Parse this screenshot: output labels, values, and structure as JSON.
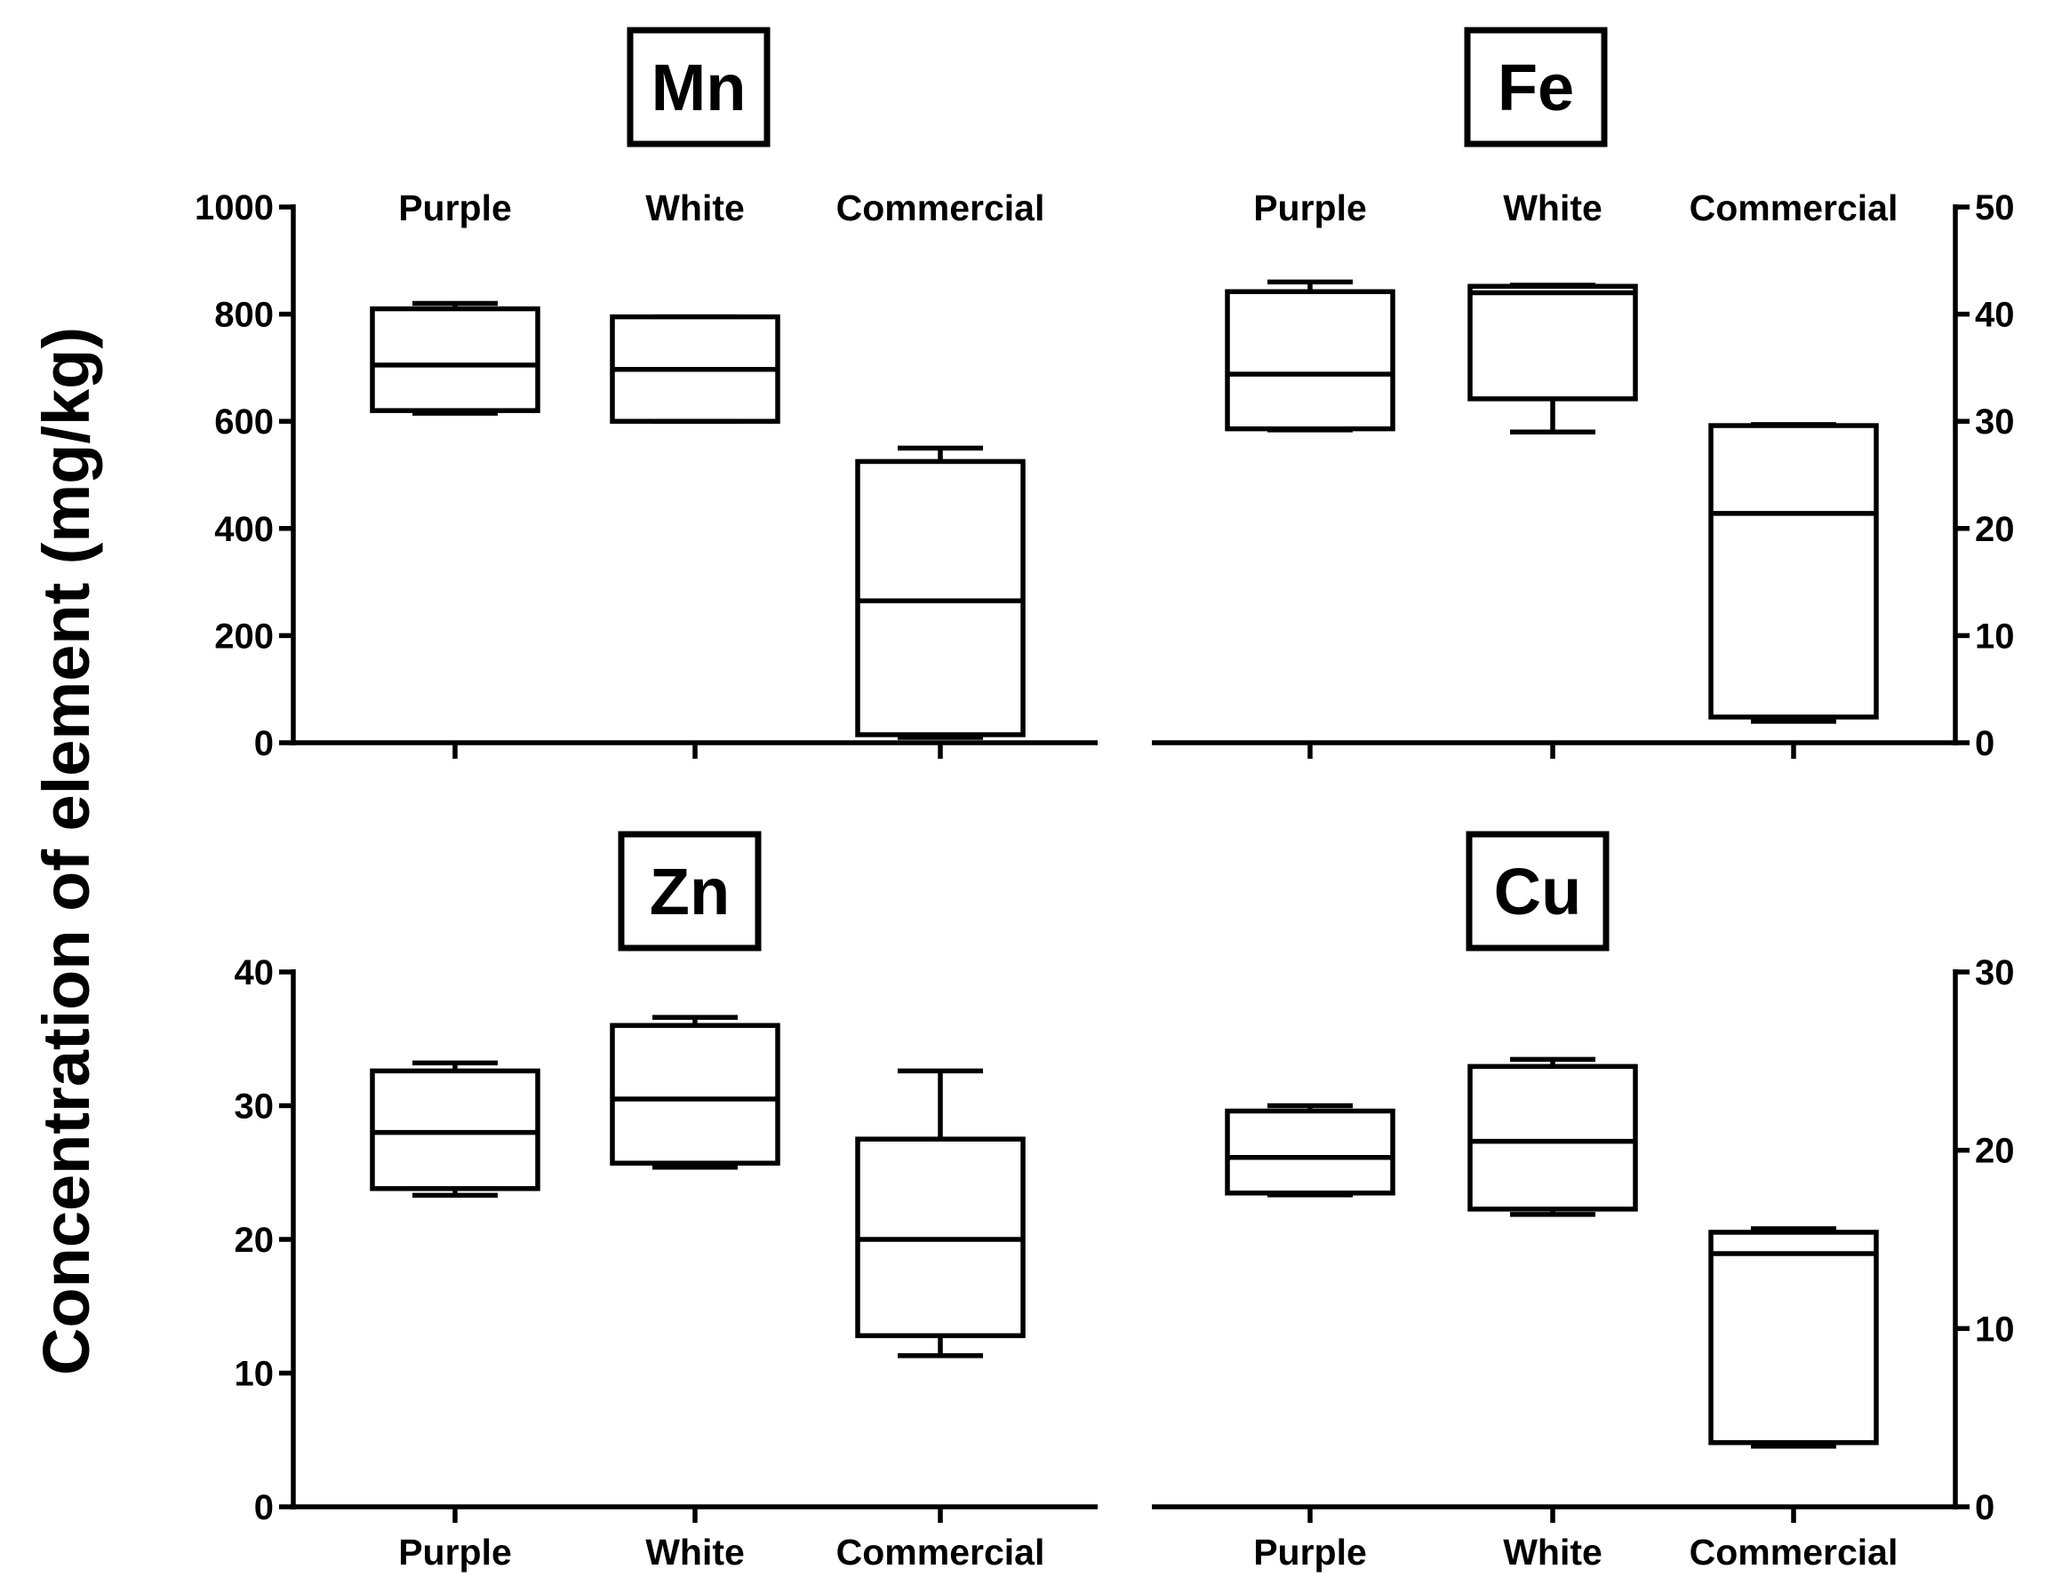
{
  "figure": {
    "ylabel": "Concentration of element (mg/kg)"
  },
  "chart_data": [
    {
      "type": "box",
      "title": "Mn",
      "categories": [
        "Purple",
        "White",
        "Commercial"
      ],
      "ylim": [
        0,
        1000
      ],
      "yticks": [
        0,
        200,
        400,
        600,
        800,
        1000
      ],
      "ytick_labels": [
        "0",
        "200",
        "400",
        "600",
        "800",
        "1000"
      ],
      "y_axis_side": "left",
      "category_labels_position": "top",
      "boxes": [
        {
          "name": "Purple",
          "min": 615,
          "q1": 620,
          "median": 705,
          "q3": 810,
          "max": 820
        },
        {
          "name": "White",
          "min": 600,
          "q1": 600,
          "median": 697,
          "q3": 795,
          "max": 795
        },
        {
          "name": "Commercial",
          "min": 10,
          "q1": 15,
          "median": 265,
          "q3": 525,
          "max": 550
        }
      ]
    },
    {
      "type": "box",
      "title": "Fe",
      "categories": [
        "Purple",
        "White",
        "Commercial"
      ],
      "ylim": [
        0,
        50
      ],
      "yticks": [
        0,
        10,
        20,
        30,
        40,
        50
      ],
      "ytick_labels": [
        "0",
        "10",
        "20",
        "30",
        "40",
        "50"
      ],
      "y_axis_side": "right",
      "category_labels_position": "top",
      "boxes": [
        {
          "name": "Purple",
          "min": 29.2,
          "q1": 29.3,
          "median": 34.4,
          "q3": 42.1,
          "max": 43.0
        },
        {
          "name": "White",
          "min": 29.0,
          "q1": 32.1,
          "median": 42.0,
          "q3": 42.6,
          "max": 42.7
        },
        {
          "name": "Commercial",
          "min": 2.0,
          "q1": 2.4,
          "median": 21.4,
          "q3": 29.6,
          "max": 29.7
        }
      ]
    },
    {
      "type": "box",
      "title": "Zn",
      "categories": [
        "Purple",
        "White",
        "Commercial"
      ],
      "ylim": [
        0,
        40
      ],
      "yticks": [
        0,
        10,
        20,
        30,
        40
      ],
      "ytick_labels": [
        "0",
        "10",
        "20",
        "30",
        "40"
      ],
      "y_axis_side": "left",
      "category_labels_position": "bottom",
      "boxes": [
        {
          "name": "Purple",
          "min": 23.3,
          "q1": 23.8,
          "median": 28.0,
          "q3": 32.6,
          "max": 33.2
        },
        {
          "name": "White",
          "min": 25.4,
          "q1": 25.7,
          "median": 30.5,
          "q3": 36.0,
          "max": 36.6
        },
        {
          "name": "Commercial",
          "min": 11.3,
          "q1": 12.8,
          "median": 20.0,
          "q3": 27.5,
          "max": 32.6
        }
      ]
    },
    {
      "type": "box",
      "title": "Cu",
      "categories": [
        "Purple",
        "White",
        "Commercial"
      ],
      "ylim": [
        0,
        30
      ],
      "yticks": [
        0,
        10,
        20,
        30
      ],
      "ytick_labels": [
        "0",
        "10",
        "20",
        "30"
      ],
      "y_axis_side": "right",
      "category_labels_position": "bottom",
      "boxes": [
        {
          "name": "Purple",
          "min": 17.5,
          "q1": 17.6,
          "median": 19.6,
          "q3": 22.2,
          "max": 22.5
        },
        {
          "name": "White",
          "min": 16.4,
          "q1": 16.7,
          "median": 20.5,
          "q3": 24.7,
          "max": 25.1
        },
        {
          "name": "Commercial",
          "min": 3.4,
          "q1": 3.6,
          "median": 14.2,
          "q3": 15.4,
          "max": 15.6
        }
      ]
    }
  ]
}
